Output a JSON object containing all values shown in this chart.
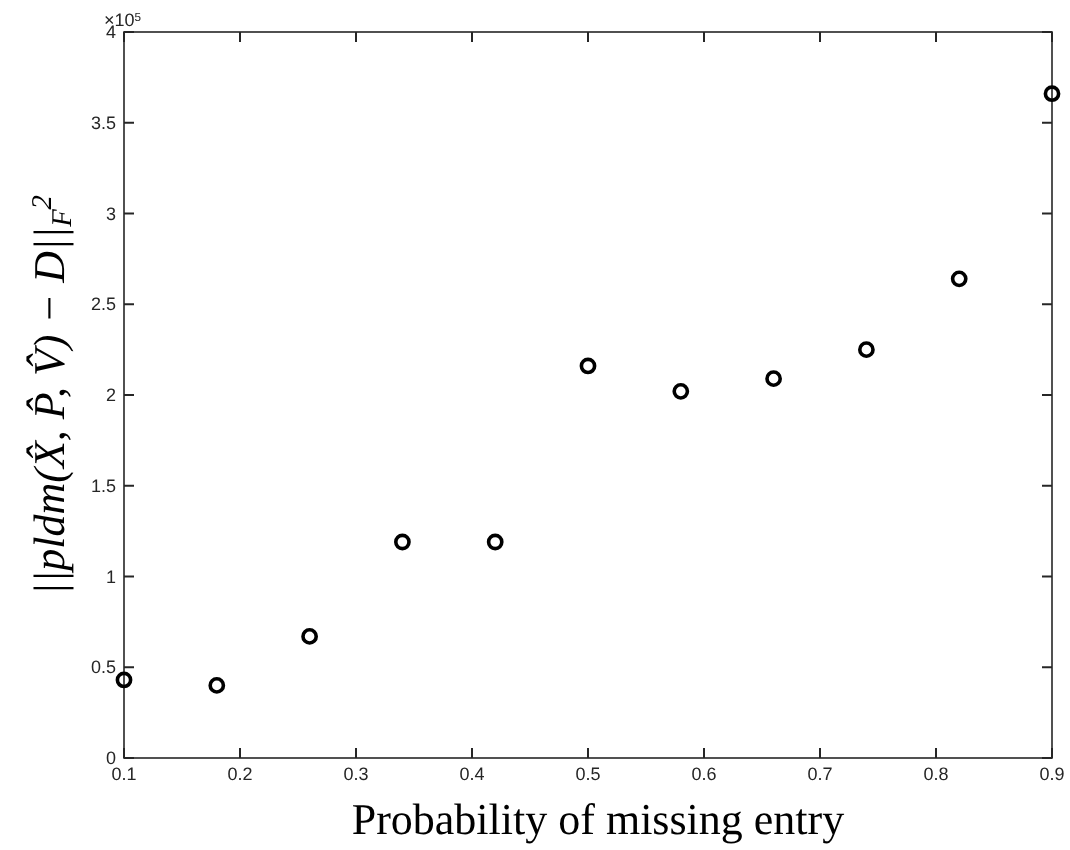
{
  "chart_data": {
    "type": "scatter",
    "xlabel": "Probability of missing entry",
    "ylabel": "||pldm(X̂, P̂, V̂) − D||$_{F}$$^{2}$",
    "annotations": [
      "×10$^{5}$"
    ],
    "x": [
      0.1,
      0.18,
      0.26,
      0.34,
      0.42,
      0.5,
      0.58,
      0.66,
      0.74,
      0.82,
      0.9
    ],
    "series": [
      {
        "color": "#000000",
        "values": [
          0.43,
          0.4,
          0.67,
          1.19,
          1.19,
          2.16,
          2.02,
          2.09,
          2.25,
          2.64,
          3.66
        ]
      }
    ],
    "marker": "circle",
    "grid": false,
    "xlim": [
      0.1,
      0.9
    ],
    "xticks": [
      0.1,
      0.2,
      0.3,
      0.4,
      0.5,
      0.6,
      0.7,
      0.8,
      0.9
    ],
    "ylim": [
      0,
      4
    ],
    "yticks": [
      0,
      0.5,
      1,
      1.5,
      2,
      2.5,
      3,
      3.5,
      4
    ]
  }
}
